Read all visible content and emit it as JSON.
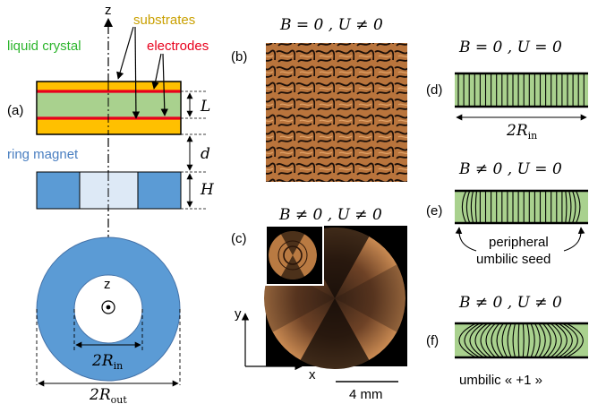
{
  "colors": {
    "substrate": "#ffc000",
    "substrate_label": "#c9a000",
    "liquid_crystal": "#a9d18e",
    "electrode": "#e8001c",
    "magnet": "#5b9bd5",
    "magnet_inner": "#dde9f6",
    "ring_magnet_label": "#4a7fc1",
    "lc_label": "#2db52d"
  },
  "panel_a": {
    "tag": "(a)",
    "axis_z": "z",
    "substrates_label": "substrates",
    "electrodes_label": "electrodes",
    "liquid_crystal_label": "liquid crystal",
    "ring_magnet_label": "ring magnet",
    "dim_L": "L",
    "dim_d": "d",
    "dim_H": "H",
    "top_view_z": "z",
    "r_in": {
      "main": "2R",
      "sub": "in"
    },
    "r_out": {
      "main": "2R",
      "sub": "out"
    }
  },
  "panel_b": {
    "tag": "(b)",
    "condition": "B = 0 , U ≠ 0"
  },
  "panel_c": {
    "tag": "(c)",
    "condition": "B ≠ 0 , U ≠ 0",
    "axis_x": "x",
    "axis_y": "y",
    "scale_bar": "4 mm"
  },
  "panel_d": {
    "tag": "(d)",
    "condition": "B = 0 , U = 0",
    "width": {
      "main": "2R",
      "sub": "in"
    }
  },
  "panel_e": {
    "tag": "(e)",
    "condition": "B ≠ 0 , U = 0",
    "annotation_line1": "peripheral",
    "annotation_line2": "umbilic seed"
  },
  "panel_f": {
    "tag": "(f)",
    "condition": "B ≠ 0 , U ≠ 0",
    "annotation": "umbilic « +1 »"
  }
}
